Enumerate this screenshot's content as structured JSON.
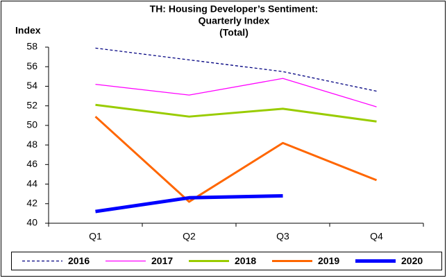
{
  "chart_data": {
    "type": "line",
    "title": [
      "TH: Housing Developer’s Sentiment:",
      "Quarterly Index",
      "(Total)"
    ],
    "y_label": "Index",
    "categories": [
      "Q1",
      "Q2",
      "Q3",
      "Q4"
    ],
    "series": [
      {
        "name": "2016",
        "color": "#000080",
        "line_width": 1.3,
        "dashed": true,
        "values": [
          57.9,
          56.7,
          55.5,
          53.5
        ]
      },
      {
        "name": "2017",
        "color": "#ff00ff",
        "line_width": 1.3,
        "dashed": false,
        "values": [
          54.2,
          53.1,
          54.8,
          51.9
        ]
      },
      {
        "name": "2018",
        "color": "#99cc00",
        "line_width": 3,
        "dashed": false,
        "values": [
          52.1,
          50.9,
          51.7,
          50.4
        ]
      },
      {
        "name": "2019",
        "color": "#ff6600",
        "line_width": 3,
        "dashed": false,
        "values": [
          50.9,
          42.2,
          48.2,
          44.4
        ]
      },
      {
        "name": "2020",
        "color": "#0000ff",
        "line_width": 5,
        "dashed": false,
        "values": [
          41.2,
          42.6,
          42.8,
          null
        ]
      }
    ],
    "ylim": [
      40,
      58
    ],
    "yticks": [
      40,
      42,
      44,
      46,
      48,
      50,
      52,
      54,
      56,
      58
    ],
    "grid": false,
    "legend": "bottom"
  }
}
